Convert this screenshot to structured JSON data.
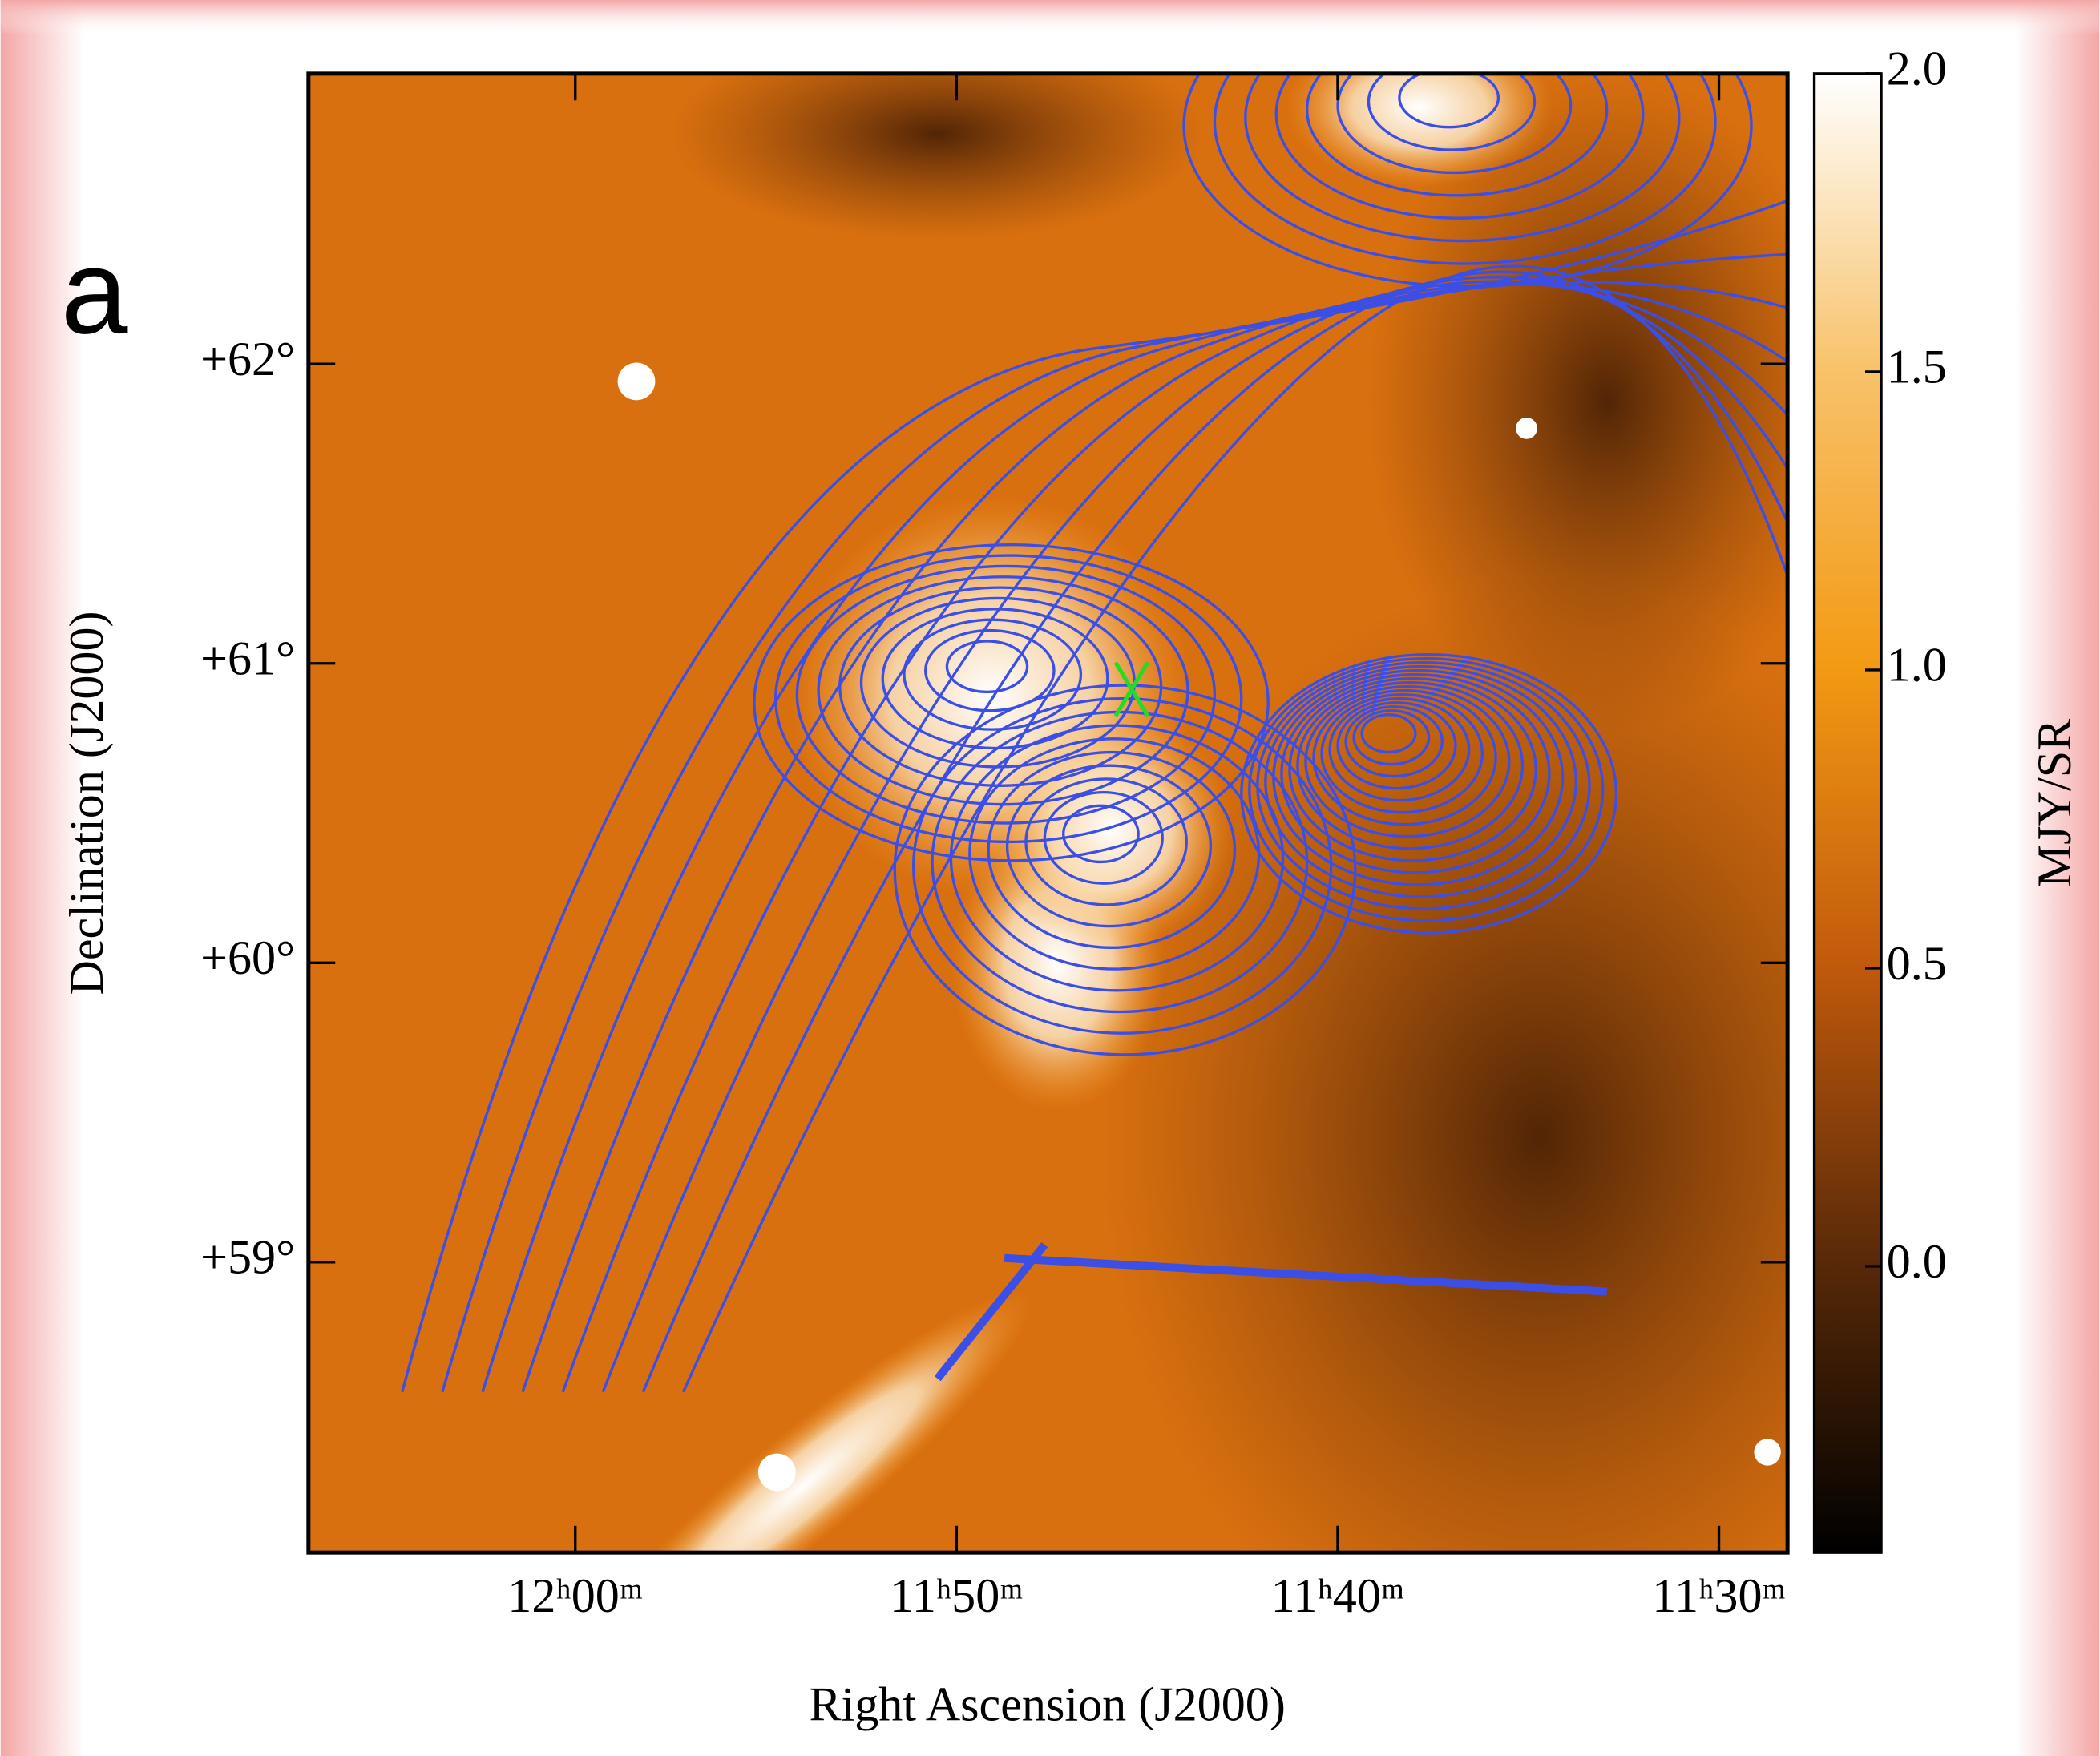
{
  "panel_label": "a",
  "chart_data": {
    "type": "sky-map",
    "xlabel": "Right Ascension (J2000)",
    "ylabel": "Declination (J2000)",
    "xlim": [
      727.0,
      688.2
    ],
    "xticks": [
      {
        "value": 720,
        "label": "12ʰ00ᵐ"
      },
      {
        "value": 710,
        "label": "11ʰ50ᵐ"
      },
      {
        "value": 700,
        "label": "11ʰ40ᵐ"
      },
      {
        "value": 690,
        "label": "11ʰ30ᵐ"
      }
    ],
    "ylim": [
      58.03,
      62.97
    ],
    "yticks": [
      {
        "value": 62,
        "label": "+62°"
      },
      {
        "value": 61,
        "label": "+61°"
      },
      {
        "value": 60,
        "label": "+60°"
      },
      {
        "value": 59,
        "label": "+59°"
      }
    ],
    "colorbar": {
      "label": "MJY/SR",
      "clim": [
        -0.48,
        2.0
      ],
      "ticks": [
        {
          "value": 2.0,
          "label": "2.0"
        },
        {
          "value": 1.5,
          "label": "1.5"
        },
        {
          "value": 1.0,
          "label": "1.0"
        },
        {
          "value": 0.5,
          "label": "0.5"
        },
        {
          "value": 0.0,
          "label": "0.0"
        }
      ]
    }
  }
}
